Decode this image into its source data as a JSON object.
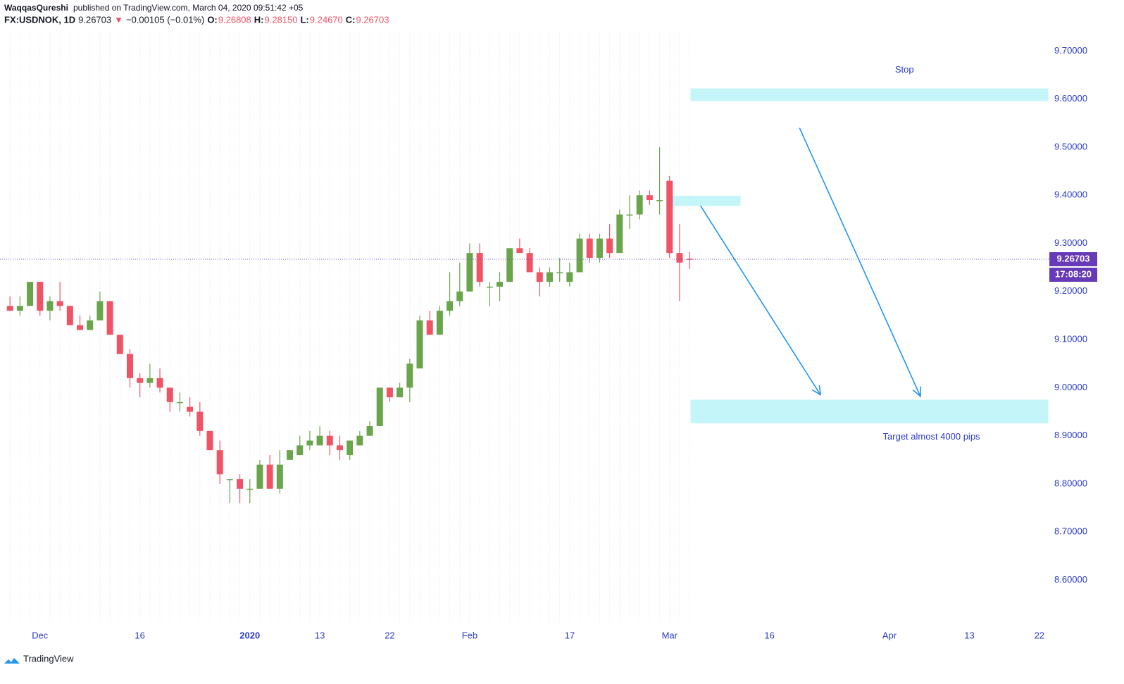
{
  "header": {
    "author": "WaqqasQureshi",
    "published": "published on TradingView.com, March 04, 2020 09:51:42 +05",
    "symbol": "FX:USDNOK, 1D",
    "last": "9.26703",
    "arrow": "▼",
    "change": "−0.00105 (−0.01%)",
    "o_label": "O:",
    "o": "9.26808",
    "h_label": "H:",
    "h": "9.28150",
    "l_label": "L:",
    "l": "9.24670",
    "c_label": "C:",
    "c": "9.26703"
  },
  "chart_data": {
    "type": "candlestick",
    "up_color": "#6aa54c",
    "down_color": "#ef5366",
    "open": [
      9.17,
      9.16,
      9.17,
      9.22,
      9.16,
      9.18,
      9.17,
      9.13,
      9.12,
      9.14,
      9.18,
      9.11,
      9.07,
      9.02,
      9.01,
      9.02,
      9.0,
      8.97,
      8.96,
      8.95,
      8.91,
      8.87,
      8.81,
      8.81,
      8.79,
      8.79,
      8.84,
      8.79,
      8.85,
      8.86,
      8.88,
      8.88,
      8.9,
      8.88,
      8.86,
      8.88,
      8.9,
      8.92,
      9.0,
      8.98,
      9.0,
      9.04,
      9.14,
      9.11,
      9.16,
      9.18,
      9.2,
      9.28,
      9.21,
      9.21,
      9.22,
      9.29,
      9.28,
      9.24,
      9.22,
      9.24,
      9.22,
      9.24,
      9.31,
      9.27,
      9.31,
      9.28,
      9.36,
      9.36,
      9.4,
      9.39,
      9.43,
      9.28,
      9.26808
    ],
    "high": [
      9.19,
      9.19,
      9.22,
      9.22,
      9.19,
      9.22,
      9.17,
      9.15,
      9.15,
      9.2,
      9.18,
      9.11,
      9.08,
      9.03,
      9.05,
      9.04,
      9.0,
      8.99,
      8.98,
      8.97,
      8.91,
      8.89,
      8.81,
      8.82,
      8.81,
      8.85,
      8.86,
      8.87,
      8.87,
      8.9,
      8.91,
      8.92,
      8.91,
      8.9,
      8.89,
      8.91,
      8.93,
      9.0,
      9.0,
      9.01,
      9.06,
      9.15,
      9.16,
      9.17,
      9.24,
      9.26,
      9.3,
      9.3,
      9.22,
      9.24,
      9.29,
      9.31,
      9.29,
      9.25,
      9.25,
      9.27,
      9.26,
      9.32,
      9.32,
      9.32,
      9.34,
      9.37,
      9.4,
      9.41,
      9.41,
      9.5,
      9.44,
      9.34,
      9.2815
    ],
    "low": [
      9.16,
      9.15,
      9.17,
      9.15,
      9.14,
      9.16,
      9.13,
      9.12,
      9.12,
      9.14,
      9.11,
      9.07,
      9.0,
      8.98,
      9.0,
      8.99,
      8.95,
      8.95,
      8.94,
      8.9,
      8.87,
      8.8,
      8.76,
      8.76,
      8.76,
      8.79,
      8.79,
      8.78,
      8.85,
      8.86,
      8.87,
      8.88,
      8.86,
      8.85,
      8.85,
      8.88,
      8.9,
      8.92,
      8.97,
      8.98,
      8.97,
      9.04,
      9.11,
      9.11,
      9.15,
      9.17,
      9.2,
      9.21,
      9.17,
      9.18,
      9.22,
      9.28,
      9.24,
      9.19,
      9.21,
      9.22,
      9.21,
      9.24,
      9.26,
      9.26,
      9.27,
      9.28,
      9.33,
      9.35,
      9.38,
      9.36,
      9.27,
      9.18,
      9.2467
    ],
    "close": [
      9.16,
      9.17,
      9.22,
      9.16,
      9.18,
      9.17,
      9.13,
      9.12,
      9.14,
      9.18,
      9.11,
      9.07,
      9.02,
      9.01,
      9.02,
      9.0,
      8.97,
      8.97,
      8.95,
      8.91,
      8.87,
      8.82,
      8.81,
      8.79,
      8.79,
      8.84,
      8.79,
      8.84,
      8.87,
      8.88,
      8.89,
      8.9,
      8.88,
      8.87,
      8.89,
      8.9,
      8.92,
      9.0,
      8.98,
      9.0,
      9.05,
      9.14,
      9.11,
      9.16,
      9.18,
      9.2,
      9.28,
      9.22,
      9.21,
      9.22,
      9.29,
      9.28,
      9.24,
      9.22,
      9.24,
      9.24,
      9.24,
      9.31,
      9.27,
      9.31,
      9.28,
      9.36,
      9.36,
      9.4,
      9.39,
      9.39,
      9.28,
      9.26,
      9.26703
    ],
    "ylim": [
      8.51,
      9.74
    ],
    "yticks": [
      {
        "value": 9.7,
        "label": "9.70000"
      },
      {
        "value": 9.6,
        "label": "9.60000"
      },
      {
        "value": 9.5,
        "label": "9.50000"
      },
      {
        "value": 9.4,
        "label": "9.40000"
      },
      {
        "value": 9.3,
        "label": "9.30000"
      },
      {
        "value": 9.2,
        "label": "9.20000"
      },
      {
        "value": 9.1,
        "label": "9.10000"
      },
      {
        "value": 9.0,
        "label": "9.00000"
      },
      {
        "value": 8.9,
        "label": "8.90000"
      },
      {
        "value": 8.8,
        "label": "8.80000"
      },
      {
        "value": 8.7,
        "label": "8.70000"
      },
      {
        "value": 8.6,
        "label": "8.60000"
      }
    ],
    "xlim": [
      -1,
      104
    ],
    "xticks": [
      {
        "value": 3,
        "label": "Dec"
      },
      {
        "value": 13,
        "label": "16"
      },
      {
        "value": 24,
        "label": "2020"
      },
      {
        "value": 31,
        "label": "13"
      },
      {
        "value": 38,
        "label": "22"
      },
      {
        "value": 46,
        "label": "Feb"
      },
      {
        "value": 56,
        "label": "17"
      },
      {
        "value": 66,
        "label": "Mar"
      },
      {
        "value": 76,
        "label": "16"
      },
      {
        "value": 88,
        "label": "Apr"
      },
      {
        "value": 96,
        "label": "13"
      },
      {
        "value": 103,
        "label": "22"
      }
    ],
    "countdown": "17:08:20",
    "zones": [
      {
        "low": 9.596,
        "high": 9.622,
        "from": 68.1,
        "to": 103.9,
        "color": "#c4f5f9"
      },
      {
        "low": 9.378,
        "high": 9.399,
        "from": 65.8,
        "to": 73.1,
        "color": "#c4f5f9"
      },
      {
        "low": 8.926,
        "high": 8.975,
        "from": 68.1,
        "to": 103.9,
        "color": "#c4f5f9"
      }
    ],
    "arrows": [
      {
        "from": [
          69.1,
          9.378
        ],
        "to": [
          81.1,
          8.985
        ],
        "color": "#2196f3"
      },
      {
        "from": [
          79.0,
          9.54
        ],
        "to": [
          91.1,
          8.982
        ],
        "color": "#2196f3"
      }
    ],
    "annotations": [
      {
        "text": "Stop",
        "x": 89.5,
        "y": 9.66
      },
      {
        "text": "Target almost 4000 pips",
        "x": 92.2,
        "y": 8.897
      }
    ]
  },
  "footer": {
    "brand": "TradingView"
  }
}
